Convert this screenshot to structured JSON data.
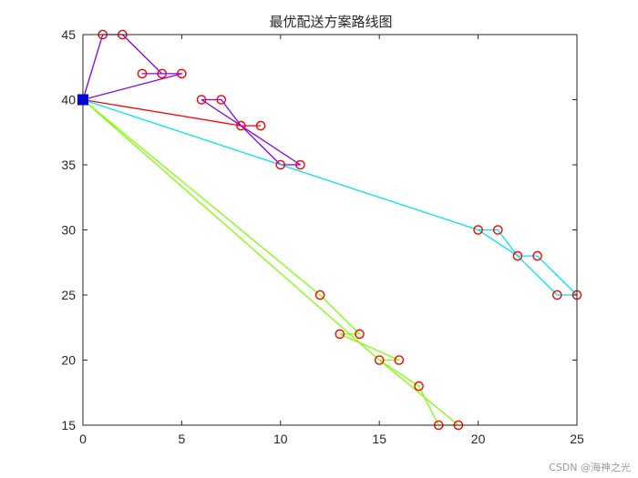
{
  "chart_data": {
    "type": "line",
    "title": "最优配送方案路线图",
    "xlabel": "",
    "ylabel": "",
    "xlim": [
      0,
      25
    ],
    "ylim": [
      15,
      45
    ],
    "xticks": [
      0,
      5,
      10,
      15,
      20,
      25
    ],
    "yticks": [
      15,
      20,
      25,
      30,
      35,
      40,
      45
    ],
    "grid": false,
    "depot": {
      "x": 0,
      "y": 40,
      "color": "#0000ff"
    },
    "customers": [
      [
        1,
        45
      ],
      [
        2,
        45
      ],
      [
        3,
        42
      ],
      [
        4,
        42
      ],
      [
        5,
        42
      ],
      [
        6,
        40
      ],
      [
        7,
        40
      ],
      [
        8,
        38
      ],
      [
        9,
        38
      ],
      [
        10,
        35
      ],
      [
        11,
        35
      ],
      [
        12,
        25
      ],
      [
        13,
        22
      ],
      [
        14,
        22
      ],
      [
        15,
        20
      ],
      [
        16,
        20
      ],
      [
        17,
        18
      ],
      [
        18,
        15
      ],
      [
        19,
        15
      ],
      [
        20,
        30
      ],
      [
        21,
        30
      ],
      [
        22,
        28
      ],
      [
        23,
        28
      ],
      [
        24,
        25
      ],
      [
        25,
        25
      ]
    ],
    "customer_marker_color": "#ff0000",
    "routes": [
      {
        "color": "#ff0000",
        "points": [
          [
            0,
            40
          ],
          [
            8,
            38
          ],
          [
            9,
            38
          ]
        ]
      },
      {
        "color": "#8000ff",
        "points": [
          [
            0,
            40
          ],
          [
            1,
            45
          ],
          [
            2,
            45
          ],
          [
            4,
            42
          ],
          [
            3,
            42
          ],
          [
            5,
            42
          ],
          [
            0,
            40
          ]
        ]
      },
      {
        "color": "#8000ff",
        "points": [
          [
            6,
            40
          ],
          [
            7,
            40
          ],
          [
            8,
            38
          ],
          [
            10,
            35
          ],
          [
            11,
            35
          ],
          [
            6,
            40
          ]
        ]
      },
      {
        "color": "#00e5ee",
        "points": [
          [
            0,
            40
          ],
          [
            20,
            30
          ],
          [
            21,
            30
          ],
          [
            22,
            28
          ],
          [
            23,
            28
          ],
          [
            25,
            25
          ],
          [
            24,
            25
          ],
          [
            22,
            28
          ],
          [
            20,
            30
          ],
          [
            0,
            40
          ]
        ]
      },
      {
        "color": "#80ff00",
        "points": [
          [
            0,
            40
          ],
          [
            12,
            25
          ],
          [
            14,
            22
          ],
          [
            13,
            22
          ],
          [
            16,
            20
          ],
          [
            15,
            20
          ],
          [
            19,
            15
          ],
          [
            18,
            15
          ],
          [
            17,
            18
          ],
          [
            15,
            20
          ],
          [
            0,
            40
          ]
        ]
      }
    ]
  },
  "watermark": "CSDN @海神之光"
}
